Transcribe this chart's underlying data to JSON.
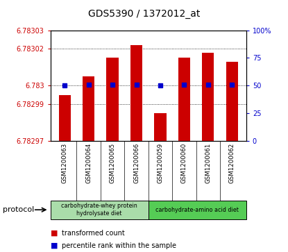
{
  "title": "GDS5390 / 1372012_at",
  "categories": [
    "GSM1200063",
    "GSM1200064",
    "GSM1200065",
    "GSM1200066",
    "GSM1200059",
    "GSM1200060",
    "GSM1200061",
    "GSM1200062"
  ],
  "red_values": [
    6.782995,
    6.783005,
    6.783015,
    6.783022,
    6.782985,
    6.783015,
    6.783018,
    6.783013
  ],
  "blue_values": [
    50,
    51,
    51,
    51,
    50,
    51,
    51,
    51
  ],
  "ylim_left": [
    6.78297,
    6.78303
  ],
  "ylim_right": [
    0,
    100
  ],
  "yticks_left": [
    6.78297,
    6.78299,
    6.783,
    6.78302,
    6.78303
  ],
  "ytick_labels_left": [
    "6.78297",
    "6.78299",
    "6.783",
    "6.78302",
    "6.78303"
  ],
  "yticks_right": [
    0,
    25,
    50,
    75,
    100
  ],
  "ytick_labels_right": [
    "0",
    "25",
    "50",
    "75",
    "100%"
  ],
  "grid_yticks": [
    6.78299,
    6.783,
    6.78302
  ],
  "bar_color": "#cc0000",
  "dot_color": "#0000cc",
  "bar_bottom": 6.78297,
  "group1_label": "carbohydrate-whey protein\nhydrolysate diet",
  "group2_label": "carbohydrate-amino acid diet",
  "group1_color": "#aaddaa",
  "group2_color": "#55cc55",
  "protocol_label": "protocol",
  "legend_red": "transformed count",
  "legend_blue": "percentile rank within the sample",
  "xlabel_area_color": "#cccccc",
  "fig_bg": "#ffffff"
}
